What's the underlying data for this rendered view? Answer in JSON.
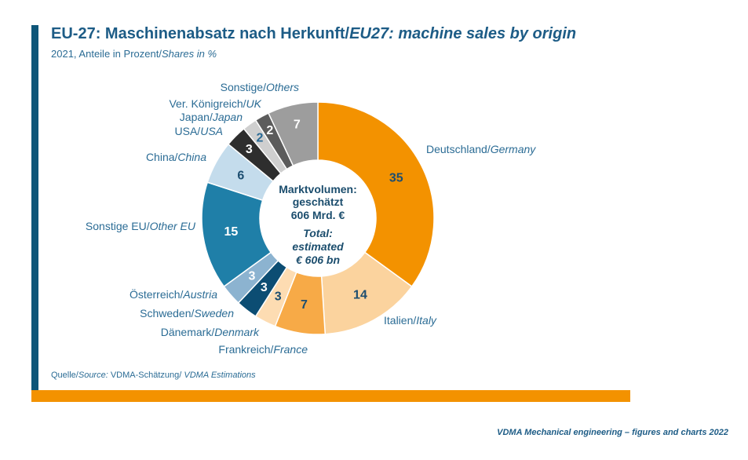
{
  "chart_data": {
    "type": "pie",
    "variant": "donut",
    "title": {
      "de": "EU-27: Maschinenabsatz nach Herkunft/",
      "en": "EU27: machine sales by origin"
    },
    "subtitle": {
      "de": "2021, Anteile in Prozent/",
      "en": "Shares in %"
    },
    "slices": [
      {
        "label": {
          "de": "Deutschland/",
          "en": "Germany"
        },
        "value": 35,
        "color": "#f39200",
        "value_color": "#1d4e70"
      },
      {
        "label": {
          "de": "Italien/",
          "en": "Italy"
        },
        "value": 14,
        "color": "#fbd39e",
        "value_color": "#1d4e70"
      },
      {
        "label": {
          "de": "Frankreich/",
          "en": "France"
        },
        "value": 7,
        "color": "#f7aa47",
        "value_color": "#1d4e70"
      },
      {
        "label": {
          "de": "Dänemark/",
          "en": "Denmark"
        },
        "value": 3,
        "color": "#fddcb2",
        "value_color": "#1d4e70"
      },
      {
        "label": {
          "de": "Schweden/",
          "en": "Sweden"
        },
        "value": 3,
        "color": "#0c4d73",
        "value_color": "#ffffff"
      },
      {
        "label": {
          "de": "Österreich/",
          "en": "Austria"
        },
        "value": 3,
        "color": "#8cb3d0",
        "value_color": "#ffffff"
      },
      {
        "label": {
          "de": "Sonstige EU/",
          "en": "Other EU"
        },
        "value": 15,
        "color": "#1f7fa8",
        "value_color": "#ffffff"
      },
      {
        "label": {
          "de": "China/",
          "en": "China"
        },
        "value": 6,
        "color": "#c4dcec",
        "value_color": "#1d4e70"
      },
      {
        "label": {
          "de": "USA/",
          "en": "USA"
        },
        "value": 3,
        "color": "#2e2e2e",
        "value_color": "#ffffff"
      },
      {
        "label": {
          "de": "Japan/",
          "en": "Japan"
        },
        "value": 2,
        "color": "#cfcfcf",
        "value_color": "#2a6a95"
      },
      {
        "label": {
          "de": "Ver. Königreich/",
          "en": "UK"
        },
        "value": 2,
        "color": "#5c5c5c",
        "value_color": "#ffffff"
      },
      {
        "label": {
          "de": "Sonstige/",
          "en": "Others"
        },
        "value": 7,
        "color": "#9d9d9d",
        "value_color": "#ffffff"
      }
    ],
    "center_text": {
      "de": [
        "Marktvolumen:",
        "geschätzt",
        "606 Mrd. €"
      ],
      "en": [
        "Total:",
        "estimated",
        "€ 606 bn"
      ]
    }
  },
  "source": {
    "label_de": "Quelle/",
    "label_en": "Source:",
    "text_de": "VDMA-Schätzung/",
    "text_en": "VDMA Estimations"
  },
  "footer": {
    "text": "VDMA Mechanical engineering – figures and charts 2022"
  },
  "theme": {
    "side_bar": "#0e5679",
    "bottom_bar": "#f39200",
    "title_color": "#1d5c86",
    "text_color": "#2b6c95",
    "center_text_color": "#1b4d6d"
  }
}
